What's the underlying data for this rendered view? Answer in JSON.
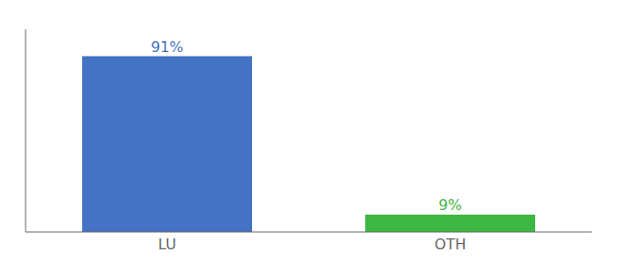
{
  "chart_data": {
    "type": "bar",
    "categories": [
      "LU",
      "OTH"
    ],
    "values": [
      91,
      9
    ],
    "value_labels": [
      "91%",
      "9%"
    ],
    "colors": [
      "#4472c4",
      "#3cb842"
    ],
    "ylim": [
      0,
      105
    ],
    "grid": false,
    "tick_labels": "x"
  }
}
